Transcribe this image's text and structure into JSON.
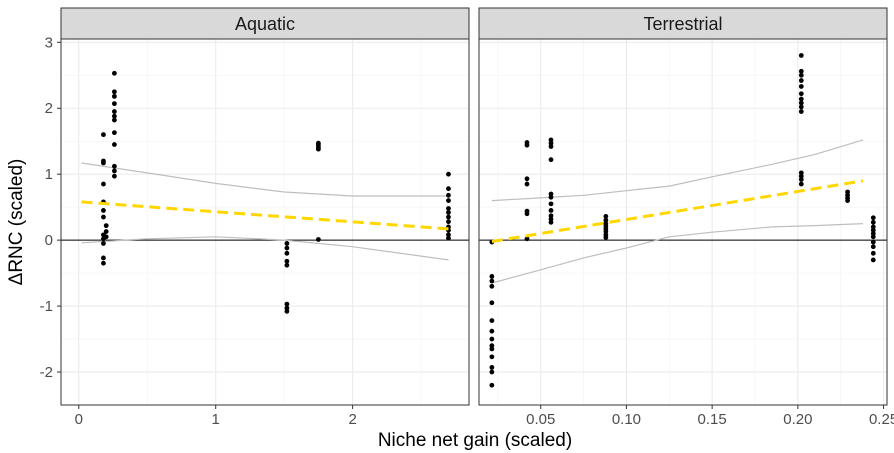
{
  "chart_data": {
    "type": "scatter",
    "xlabel": "Niche net gain (scaled)",
    "ylabel": "ΔRNC (scaled)",
    "ylim": [
      -2.5,
      3.05
    ],
    "yticks": [
      -2,
      -1,
      0,
      1,
      2,
      3
    ],
    "grid": true,
    "colors": {
      "points": "#000000",
      "trend": "#FFD700",
      "ci": "#BEBEBE",
      "strip": "#D9D9D9",
      "grid_major": "#EBEBEB",
      "grid_minor": "#F5F5F5"
    },
    "panels": [
      {
        "strip_label": "Aquatic",
        "xlim": [
          -0.13,
          2.85
        ],
        "xticks": [
          0,
          1,
          2
        ],
        "xtick_labels": [
          "0",
          "1",
          "2"
        ],
        "points": [
          [
            0.18,
            -0.35
          ],
          [
            0.18,
            -0.27
          ],
          [
            0.18,
            -0.05
          ],
          [
            0.18,
            0.02
          ],
          [
            0.18,
            0.08
          ],
          [
            0.18,
            0.35
          ],
          [
            0.18,
            0.45
          ],
          [
            0.18,
            0.58
          ],
          [
            0.18,
            0.85
          ],
          [
            0.18,
            1.17
          ],
          [
            0.18,
            1.2
          ],
          [
            0.18,
            1.6
          ],
          [
            0.2,
            0.05
          ],
          [
            0.2,
            0.13
          ],
          [
            0.2,
            0.22
          ],
          [
            0.26,
            0.97
          ],
          [
            0.26,
            1.05
          ],
          [
            0.26,
            1.12
          ],
          [
            0.26,
            1.45
          ],
          [
            0.26,
            1.63
          ],
          [
            0.26,
            1.82
          ],
          [
            0.26,
            1.88
          ],
          [
            0.26,
            1.95
          ],
          [
            0.26,
            2.07
          ],
          [
            0.26,
            2.18
          ],
          [
            0.26,
            2.25
          ],
          [
            0.26,
            2.53
          ],
          [
            1.52,
            -1.08
          ],
          [
            1.52,
            -1.03
          ],
          [
            1.52,
            -0.97
          ],
          [
            1.52,
            -0.38
          ],
          [
            1.52,
            -0.32
          ],
          [
            1.52,
            -0.2
          ],
          [
            1.52,
            -0.12
          ],
          [
            1.52,
            -0.05
          ],
          [
            1.75,
            0.01
          ],
          [
            1.75,
            1.38
          ],
          [
            1.75,
            1.41
          ],
          [
            1.75,
            1.44
          ],
          [
            1.75,
            1.47
          ],
          [
            2.7,
            0.03
          ],
          [
            2.7,
            0.08
          ],
          [
            2.7,
            0.15
          ],
          [
            2.7,
            0.2
          ],
          [
            2.7,
            0.28
          ],
          [
            2.7,
            0.35
          ],
          [
            2.7,
            0.42
          ],
          [
            2.7,
            0.48
          ],
          [
            2.7,
            0.6
          ],
          [
            2.7,
            0.68
          ],
          [
            2.7,
            0.78
          ],
          [
            2.7,
            1.0
          ]
        ],
        "trend": [
          [
            0.02,
            0.58
          ],
          [
            2.7,
            0.17
          ]
        ],
        "ci_upper": [
          [
            0.02,
            1.17
          ],
          [
            0.5,
            1.02
          ],
          [
            1.0,
            0.86
          ],
          [
            1.5,
            0.73
          ],
          [
            2.0,
            0.67
          ],
          [
            2.7,
            0.67
          ]
        ],
        "ci_lower": [
          [
            0.02,
            -0.04
          ],
          [
            0.5,
            0.02
          ],
          [
            1.0,
            0.05
          ],
          [
            1.5,
            0.0
          ],
          [
            2.0,
            -0.1
          ],
          [
            2.7,
            -0.3
          ]
        ]
      },
      {
        "strip_label": "Terrestrial",
        "xlim": [
          0.014,
          0.252
        ],
        "xticks": [
          0.05,
          0.1,
          0.15,
          0.2,
          0.25
        ],
        "xtick_labels": [
          "0.05",
          "0.10",
          "0.15",
          "0.20",
          "0.25"
        ],
        "points": [
          [
            0.0215,
            -2.2
          ],
          [
            0.0215,
            -2.0
          ],
          [
            0.0215,
            -1.93
          ],
          [
            0.0215,
            -1.77
          ],
          [
            0.0215,
            -1.65
          ],
          [
            0.0215,
            -1.6
          ],
          [
            0.0215,
            -1.5
          ],
          [
            0.0215,
            -1.38
          ],
          [
            0.0215,
            -1.22
          ],
          [
            0.0215,
            -0.95
          ],
          [
            0.0215,
            -0.7
          ],
          [
            0.0215,
            -0.62
          ],
          [
            0.0215,
            -0.55
          ],
          [
            0.0215,
            -0.03
          ],
          [
            0.042,
            0.02
          ],
          [
            0.042,
            0.4
          ],
          [
            0.042,
            0.44
          ],
          [
            0.042,
            0.85
          ],
          [
            0.042,
            0.93
          ],
          [
            0.042,
            1.44
          ],
          [
            0.042,
            1.48
          ],
          [
            0.056,
            0.27
          ],
          [
            0.056,
            0.32
          ],
          [
            0.056,
            0.37
          ],
          [
            0.056,
            0.45
          ],
          [
            0.056,
            0.55
          ],
          [
            0.056,
            0.65
          ],
          [
            0.056,
            0.7
          ],
          [
            0.056,
            1.22
          ],
          [
            0.056,
            1.42
          ],
          [
            0.056,
            1.47
          ],
          [
            0.056,
            1.52
          ],
          [
            0.088,
            0.04
          ],
          [
            0.088,
            0.08
          ],
          [
            0.088,
            0.13
          ],
          [
            0.088,
            0.17
          ],
          [
            0.088,
            0.21
          ],
          [
            0.088,
            0.25
          ],
          [
            0.088,
            0.3
          ],
          [
            0.088,
            0.36
          ],
          [
            0.202,
            0.85
          ],
          [
            0.202,
            0.92
          ],
          [
            0.202,
            0.97
          ],
          [
            0.202,
            1.02
          ],
          [
            0.202,
            1.95
          ],
          [
            0.202,
            2.02
          ],
          [
            0.202,
            2.08
          ],
          [
            0.202,
            2.14
          ],
          [
            0.202,
            2.22
          ],
          [
            0.202,
            2.33
          ],
          [
            0.202,
            2.42
          ],
          [
            0.202,
            2.5
          ],
          [
            0.202,
            2.56
          ],
          [
            0.202,
            2.8
          ],
          [
            0.229,
            0.6
          ],
          [
            0.229,
            0.64
          ],
          [
            0.229,
            0.68
          ],
          [
            0.229,
            0.73
          ],
          [
            0.244,
            -0.3
          ],
          [
            0.244,
            -0.2
          ],
          [
            0.244,
            -0.1
          ],
          [
            0.244,
            -0.03
          ],
          [
            0.244,
            0.05
          ],
          [
            0.244,
            0.1
          ],
          [
            0.244,
            0.15
          ],
          [
            0.244,
            0.2
          ],
          [
            0.244,
            0.27
          ],
          [
            0.244,
            0.34
          ]
        ],
        "trend": [
          [
            0.0215,
            -0.02
          ],
          [
            0.238,
            0.9
          ]
        ],
        "ci_upper": [
          [
            0.0215,
            0.6
          ],
          [
            0.05,
            0.64
          ],
          [
            0.075,
            0.68
          ],
          [
            0.1,
            0.75
          ],
          [
            0.125,
            0.82
          ],
          [
            0.15,
            0.96
          ],
          [
            0.185,
            1.15
          ],
          [
            0.21,
            1.3
          ],
          [
            0.238,
            1.52
          ]
        ],
        "ci_lower": [
          [
            0.0215,
            -0.65
          ],
          [
            0.05,
            -0.45
          ],
          [
            0.075,
            -0.27
          ],
          [
            0.1,
            -0.12
          ],
          [
            0.125,
            0.05
          ],
          [
            0.15,
            0.12
          ],
          [
            0.185,
            0.2
          ],
          [
            0.21,
            0.22
          ],
          [
            0.238,
            0.25
          ]
        ]
      }
    ]
  }
}
